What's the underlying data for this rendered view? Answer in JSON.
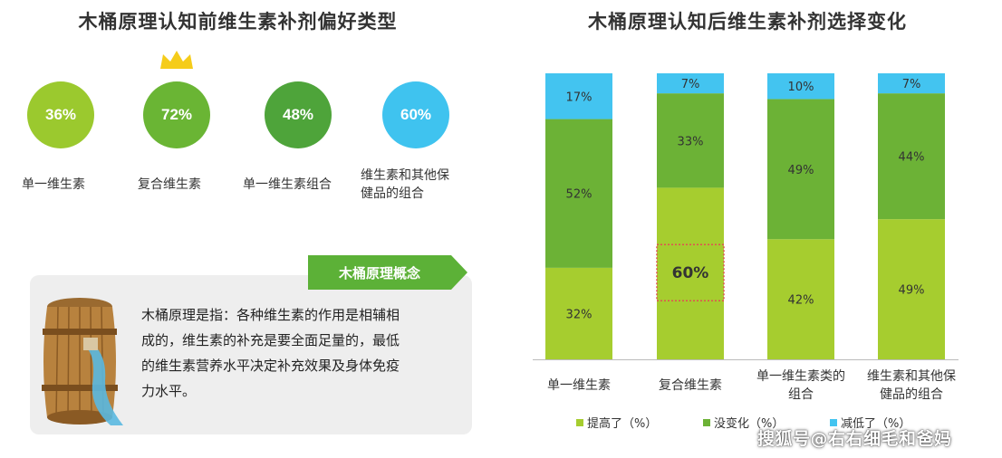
{
  "left": {
    "title": "木桶原理认知前维生素补剂偏好类型",
    "circles": [
      {
        "value": "36%",
        "label": "单一维生素",
        "color": "#9bc92e"
      },
      {
        "value": "72%",
        "label": "复合维生素",
        "color": "#6ab534"
      },
      {
        "value": "48%",
        "label": "单一维生素组合",
        "color": "#4ea43a"
      },
      {
        "value": "60%",
        "label_lines": [
          "维生素和其他保",
          "健品的组合"
        ],
        "color": "#3fc3ef"
      }
    ],
    "crown_icon": "crown-icon",
    "concept": {
      "tag": "木桶原理概念",
      "text": "木桶原理是指：各种维生素的作用是相辅相成的，维生素的补充是要全面足量的，最低的维生素营养水平决定补充效果及身体免疫力水平。",
      "text_lines": [
        "木桶原理是指：各种维生素的作用是相辅相",
        "成的，维生素的补充是要全面足量的，最低",
        "的维生素营养水平决定补充效果及身体免疫",
        "力水平。"
      ]
    }
  },
  "chart_data": {
    "type": "bar",
    "stacked": true,
    "title": "木桶原理认知后维生素补剂选择变化",
    "categories": [
      "单一维生素",
      "复合维生素",
      "单一维生素类的组合",
      "维生素和其他保健品的组合"
    ],
    "category_lines": [
      [
        "单一维生素"
      ],
      [
        "复合维生素"
      ],
      [
        "单一维生素类的",
        "组合"
      ],
      [
        "维生素和其他保",
        "健品的组合"
      ]
    ],
    "series": [
      {
        "name": "提高了（%）",
        "values": [
          32,
          60,
          42,
          49
        ],
        "labels": [
          "32%",
          "60%",
          "42%",
          "49%"
        ],
        "color": "#a6cd2f"
      },
      {
        "name": "没变化（%）",
        "values": [
          52,
          33,
          49,
          44
        ],
        "labels": [
          "52%",
          "33%",
          "49%",
          "44%"
        ],
        "color": "#6cb236"
      },
      {
        "name": "减低了（%）",
        "values": [
          17,
          7,
          10,
          7
        ],
        "labels": [
          "17%",
          "7%",
          "10%",
          "7%"
        ],
        "color": "#43c4f0"
      }
    ],
    "highlight": {
      "category": "复合维生素",
      "series": "提高了（%）",
      "color": "#e05050"
    },
    "ylim": [
      0,
      100
    ],
    "legend_position": "bottom",
    "grid": false
  },
  "watermark": "搜狐号@右右细毛和爸妈"
}
